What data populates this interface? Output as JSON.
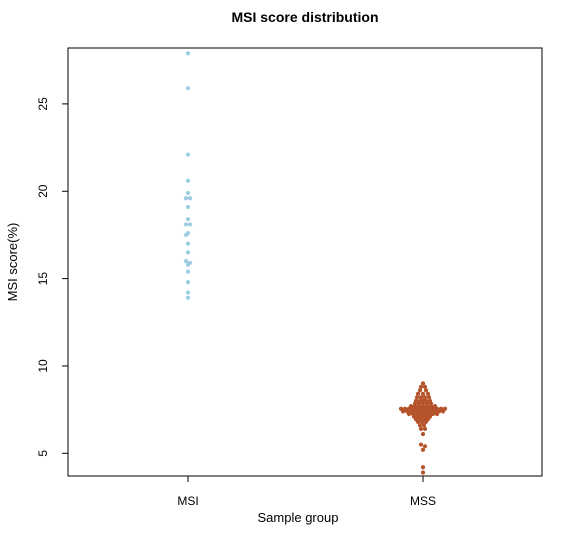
{
  "chart_data": {
    "type": "scatter",
    "title": "MSI score distribution",
    "xlabel": "Sample group",
    "ylabel": "MSI score(%)",
    "ylim": [
      3.7,
      28.2
    ],
    "yticks": [
      5,
      10,
      15,
      20,
      25
    ],
    "grid": false,
    "legend": "none",
    "categories": [
      "MSI",
      "MSS"
    ],
    "series": [
      {
        "category": "MSI",
        "color": "#9ccde0",
        "points": [
          {
            "y": 27.9,
            "offset": 0
          },
          {
            "y": 25.9,
            "offset": 0
          },
          {
            "y": 22.1,
            "offset": 0
          },
          {
            "y": 20.6,
            "offset": 0
          },
          {
            "y": 19.9,
            "offset": 0
          },
          {
            "y": 19.6,
            "offset": -2
          },
          {
            "y": 19.6,
            "offset": 2
          },
          {
            "y": 19.1,
            "offset": 0
          },
          {
            "y": 18.4,
            "offset": 0
          },
          {
            "y": 18.1,
            "offset": -2
          },
          {
            "y": 18.1,
            "offset": 2
          },
          {
            "y": 17.6,
            "offset": 0
          },
          {
            "y": 17.5,
            "offset": -2
          },
          {
            "y": 17.0,
            "offset": 0
          },
          {
            "y": 16.5,
            "offset": 0
          },
          {
            "y": 16.0,
            "offset": -2
          },
          {
            "y": 15.9,
            "offset": 2
          },
          {
            "y": 15.8,
            "offset": 0
          },
          {
            "y": 15.4,
            "offset": 0
          },
          {
            "y": 14.8,
            "offset": 0
          },
          {
            "y": 14.2,
            "offset": 0
          },
          {
            "y": 13.9,
            "offset": 0
          }
        ]
      },
      {
        "category": "MSS",
        "color": "#b5532a",
        "points": [
          {
            "y": 9.0,
            "offset": 0
          },
          {
            "y": 8.8,
            "offset": -2
          },
          {
            "y": 8.8,
            "offset": 2
          },
          {
            "y": 8.6,
            "offset": -3
          },
          {
            "y": 8.6,
            "offset": 3
          },
          {
            "y": 8.4,
            "offset": -5
          },
          {
            "y": 8.4,
            "offset": 0
          },
          {
            "y": 8.4,
            "offset": 5
          },
          {
            "y": 8.2,
            "offset": -6
          },
          {
            "y": 8.2,
            "offset": -2
          },
          {
            "y": 8.2,
            "offset": 2
          },
          {
            "y": 8.2,
            "offset": 6
          },
          {
            "y": 8.0,
            "offset": -7
          },
          {
            "y": 8.0,
            "offset": -3
          },
          {
            "y": 8.0,
            "offset": 0
          },
          {
            "y": 8.0,
            "offset": 3
          },
          {
            "y": 8.0,
            "offset": 7
          },
          {
            "y": 7.85,
            "offset": -8
          },
          {
            "y": 7.85,
            "offset": -4
          },
          {
            "y": 7.85,
            "offset": 0
          },
          {
            "y": 7.85,
            "offset": 4
          },
          {
            "y": 7.85,
            "offset": 8
          },
          {
            "y": 7.7,
            "offset": -12
          },
          {
            "y": 7.7,
            "offset": -8
          },
          {
            "y": 7.7,
            "offset": -4
          },
          {
            "y": 7.7,
            "offset": 0
          },
          {
            "y": 7.7,
            "offset": 4
          },
          {
            "y": 7.7,
            "offset": 8
          },
          {
            "y": 7.7,
            "offset": 12
          },
          {
            "y": 7.55,
            "offset": -22
          },
          {
            "y": 7.55,
            "offset": -18
          },
          {
            "y": 7.55,
            "offset": -14
          },
          {
            "y": 7.55,
            "offset": -10
          },
          {
            "y": 7.55,
            "offset": -6
          },
          {
            "y": 7.55,
            "offset": -2
          },
          {
            "y": 7.55,
            "offset": 2
          },
          {
            "y": 7.55,
            "offset": 6
          },
          {
            "y": 7.55,
            "offset": 10
          },
          {
            "y": 7.55,
            "offset": 14
          },
          {
            "y": 7.55,
            "offset": 18
          },
          {
            "y": 7.55,
            "offset": 22
          },
          {
            "y": 7.4,
            "offset": -20
          },
          {
            "y": 7.4,
            "offset": -16
          },
          {
            "y": 7.4,
            "offset": -12
          },
          {
            "y": 7.4,
            "offset": -8
          },
          {
            "y": 7.4,
            "offset": -4
          },
          {
            "y": 7.4,
            "offset": 0
          },
          {
            "y": 7.4,
            "offset": 4
          },
          {
            "y": 7.4,
            "offset": 8
          },
          {
            "y": 7.4,
            "offset": 12
          },
          {
            "y": 7.4,
            "offset": 16
          },
          {
            "y": 7.4,
            "offset": 20
          },
          {
            "y": 7.25,
            "offset": -14
          },
          {
            "y": 7.25,
            "offset": -10
          },
          {
            "y": 7.25,
            "offset": -6
          },
          {
            "y": 7.25,
            "offset": -2
          },
          {
            "y": 7.25,
            "offset": 2
          },
          {
            "y": 7.25,
            "offset": 6
          },
          {
            "y": 7.25,
            "offset": 10
          },
          {
            "y": 7.25,
            "offset": 14
          },
          {
            "y": 7.1,
            "offset": -9
          },
          {
            "y": 7.1,
            "offset": -5
          },
          {
            "y": 7.1,
            "offset": -1
          },
          {
            "y": 7.1,
            "offset": 3
          },
          {
            "y": 7.1,
            "offset": 7
          },
          {
            "y": 6.95,
            "offset": -7
          },
          {
            "y": 6.95,
            "offset": -3
          },
          {
            "y": 6.95,
            "offset": 1
          },
          {
            "y": 6.95,
            "offset": 5
          },
          {
            "y": 6.8,
            "offset": -5
          },
          {
            "y": 6.8,
            "offset": -1
          },
          {
            "y": 6.8,
            "offset": 3
          },
          {
            "y": 6.6,
            "offset": -3
          },
          {
            "y": 6.6,
            "offset": 1
          },
          {
            "y": 6.4,
            "offset": -2
          },
          {
            "y": 6.4,
            "offset": 2
          },
          {
            "y": 6.1,
            "offset": 0
          },
          {
            "y": 5.5,
            "offset": -2
          },
          {
            "y": 5.4,
            "offset": 2
          },
          {
            "y": 5.2,
            "offset": 0
          },
          {
            "y": 4.2,
            "offset": 0
          },
          {
            "y": 3.9,
            "offset": 0
          }
        ]
      }
    ]
  }
}
